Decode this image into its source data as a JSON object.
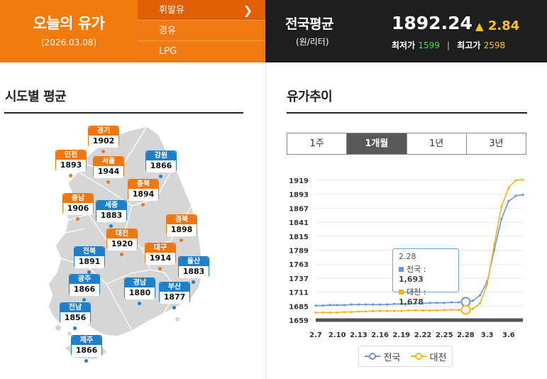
{
  "header": {
    "title": "오늘의 유가",
    "date": "(2026.03.08)",
    "fuel_menu": [
      {
        "label": "휘발유",
        "active": true
      },
      {
        "label": "경유",
        "active": false
      },
      {
        "label": "LPG",
        "active": false
      }
    ],
    "national": {
      "title": "전국평균",
      "unit": "(원/리터)",
      "value": "1892.24",
      "change": "2.84",
      "min_label": "최저가",
      "min_value": "1599",
      "separator": "|",
      "max_label": "최고가",
      "max_value": "2598"
    }
  },
  "left_panel": {
    "title": "시도별 평균",
    "regions": [
      {
        "name": "경기",
        "price": "1902",
        "color": "orange"
      },
      {
        "name": "인천",
        "price": "1893",
        "color": "orange"
      },
      {
        "name": "서울",
        "price": "1944",
        "color": "orange"
      },
      {
        "name": "강원",
        "price": "1866",
        "color": "blue"
      },
      {
        "name": "충북",
        "price": "1894",
        "color": "orange"
      },
      {
        "name": "충남",
        "price": "1906",
        "color": "orange"
      },
      {
        "name": "세종",
        "price": "1883",
        "color": "blue"
      },
      {
        "name": "대전",
        "price": "1920",
        "color": "orange"
      },
      {
        "name": "경북",
        "price": "1898",
        "color": "orange"
      },
      {
        "name": "전북",
        "price": "1891",
        "color": "blue"
      },
      {
        "name": "대구",
        "price": "1914",
        "color": "orange"
      },
      {
        "name": "울산",
        "price": "1883",
        "color": "blue"
      },
      {
        "name": "광주",
        "price": "1866",
        "color": "blue"
      },
      {
        "name": "경남",
        "price": "1880",
        "color": "blue"
      },
      {
        "name": "부산",
        "price": "1877",
        "color": "blue"
      },
      {
        "name": "전남",
        "price": "1856",
        "color": "blue"
      },
      {
        "name": "제주",
        "price": "1866",
        "color": "blue"
      }
    ]
  },
  "right_panel": {
    "title": "유가추이",
    "tabs": [
      {
        "label": "1주",
        "active": false
      },
      {
        "label": "1개월",
        "active": true
      },
      {
        "label": "1년",
        "active": false
      },
      {
        "label": "3년",
        "active": false
      }
    ],
    "tooltip": {
      "x": "2.28",
      "rows": [
        {
          "label": "전국 : ",
          "value": "1,693"
        },
        {
          "label": "대전 : ",
          "value": "1,678"
        }
      ]
    }
  },
  "chart_data": {
    "type": "line",
    "title": "",
    "xlabel": "",
    "ylabel": "",
    "x": [
      "2.7",
      "2.8",
      "2.9",
      "2.10",
      "2.11",
      "2.12",
      "2.13",
      "2.14",
      "2.15",
      "2.16",
      "2.17",
      "2.18",
      "2.19",
      "2.20",
      "2.21",
      "2.22",
      "2.23",
      "2.24",
      "2.25",
      "2.26",
      "2.27",
      "2.28",
      "3.1",
      "3.2",
      "3.3",
      "3.4",
      "3.5",
      "3.6",
      "3.7",
      "3.8"
    ],
    "x_tick_labels": [
      "2.7",
      "2.10",
      "2.13",
      "2.16",
      "2.19",
      "2.22",
      "2.25",
      "2.28",
      "3.3",
      "3.6"
    ],
    "yticks": [
      1659,
      1685,
      1711,
      1737,
      1763,
      1789,
      1815,
      1841,
      1867,
      1893,
      1919
    ],
    "ylim": [
      1659,
      1919
    ],
    "grid": true,
    "legend_position": "bottom",
    "highlight_index": 21,
    "series": [
      {
        "name": "전국",
        "color": "#6a95d6",
        "values": [
          1686,
          1686,
          1687,
          1687,
          1687,
          1688,
          1688,
          1688,
          1688,
          1688,
          1688,
          1689,
          1689,
          1689,
          1690,
          1690,
          1691,
          1691,
          1691,
          1692,
          1692,
          1693,
          1695,
          1705,
          1730,
          1790,
          1847,
          1880,
          1890,
          1892
        ]
      },
      {
        "name": "대전",
        "color": "#f2b51f",
        "values": [
          1673,
          1673,
          1673,
          1673,
          1674,
          1674,
          1675,
          1675,
          1676,
          1676,
          1676,
          1676,
          1676,
          1677,
          1677,
          1677,
          1677,
          1677,
          1678,
          1678,
          1678,
          1678,
          1680,
          1690,
          1725,
          1800,
          1870,
          1905,
          1919,
          1920
        ]
      }
    ]
  }
}
